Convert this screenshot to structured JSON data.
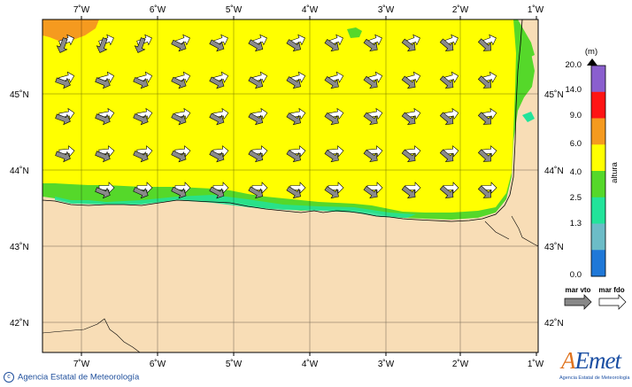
{
  "map": {
    "lon_ticks": [
      "7˚W",
      "6˚W",
      "5˚W",
      "4˚W",
      "3˚W",
      "2˚W",
      "1˚W"
    ],
    "lat_ticks": [
      "45˚N",
      "44˚N",
      "43˚N",
      "42˚N"
    ],
    "colors": {
      "land": "#f8ddb6",
      "sea_high": "#ffff00",
      "sea_mid": "#55d82a",
      "sea_low": "#22e39a",
      "orange": "#f59a1f",
      "coast": "#000000"
    },
    "arrow_rows": 5,
    "arrow_cols": 12
  },
  "legend": {
    "unit": "(m)",
    "title": "altura",
    "levels": [
      "20.0",
      "14.0",
      "9.0",
      "6.0",
      "4.0",
      "2.5",
      "1.3",
      "0.0"
    ],
    "colors": [
      "#8a5fce",
      "#ff1414",
      "#f59a1f",
      "#ffff00",
      "#55d82a",
      "#22e39a",
      "#6cbcc7",
      "#1f78d8"
    ],
    "mar_vto": "mar vto",
    "mar_fdo": "mar fdo"
  },
  "footer": {
    "copyright": "c",
    "agency": "Agencia Estatal de Meteorología",
    "logo_a": "A",
    "logo_rest": "Emet",
    "logo_sub": "Agencia Estatal de Meteorología"
  }
}
